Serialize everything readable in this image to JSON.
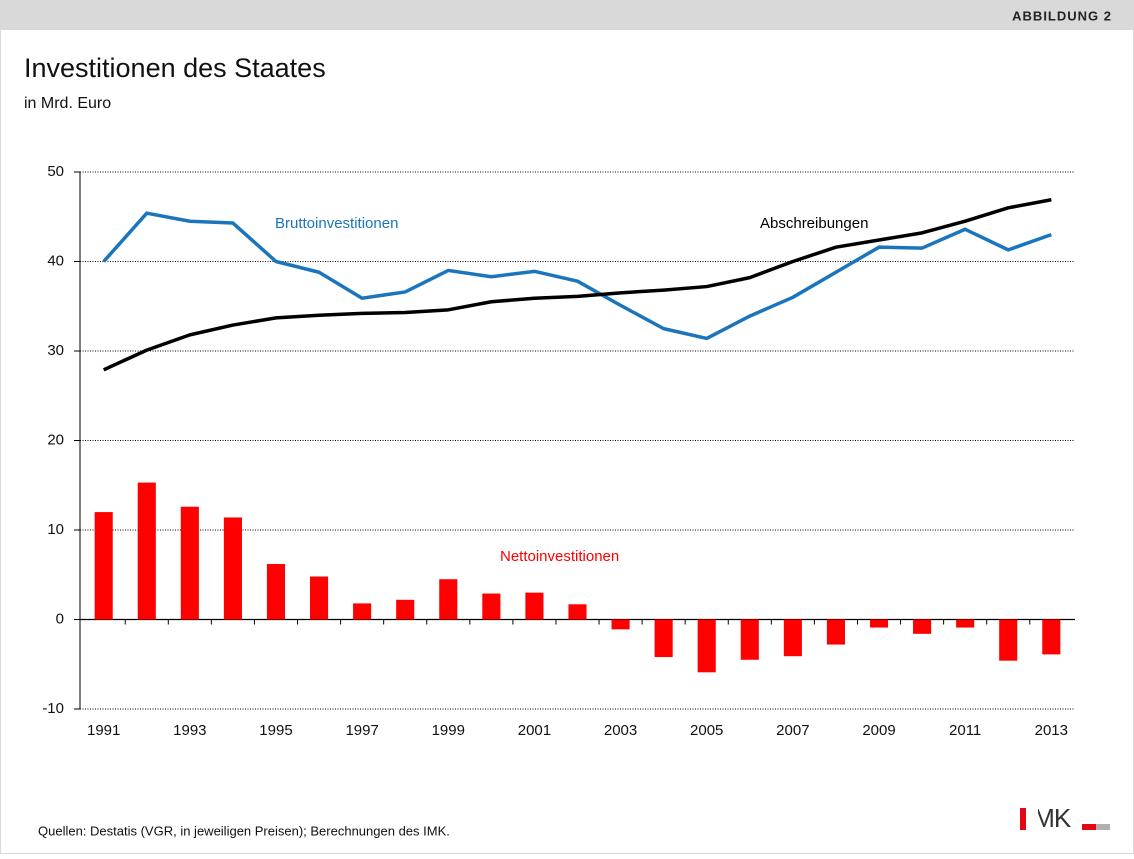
{
  "header": {
    "label": "ABBILDUNG 2"
  },
  "chart_data": {
    "type": "bar",
    "title": "Investitionen des Staates",
    "subtitle": "in Mrd. Euro",
    "x": [
      1991,
      1992,
      1993,
      1994,
      1995,
      1996,
      1997,
      1998,
      1999,
      2000,
      2001,
      2002,
      2003,
      2004,
      2005,
      2006,
      2007,
      2008,
      2009,
      2010,
      2011,
      2012,
      2013
    ],
    "xlim": [
      1990.45,
      2013.55
    ],
    "xticks": [
      1991,
      1993,
      1995,
      1997,
      1999,
      2001,
      2003,
      2005,
      2007,
      2009,
      2011,
      2013
    ],
    "ylim": [
      -10,
      50
    ],
    "yticks": [
      -10,
      0,
      10,
      20,
      30,
      40,
      50
    ],
    "grid": true,
    "series": [
      {
        "name": "Nettoinvestitionen",
        "type": "bar",
        "color": "#ff0000",
        "values": [
          12.0,
          15.3,
          12.6,
          11.4,
          6.2,
          4.8,
          1.8,
          2.2,
          4.5,
          2.9,
          3.0,
          1.7,
          -1.1,
          -4.2,
          -5.9,
          -4.5,
          -4.1,
          -2.8,
          -0.9,
          -1.6,
          -0.9,
          -4.6,
          -3.9
        ]
      },
      {
        "name": "Bruttoinvestitionen",
        "type": "line",
        "color": "#1a75bc",
        "values": [
          40.0,
          45.4,
          44.5,
          44.3,
          40.0,
          38.8,
          35.9,
          36.6,
          39.0,
          38.3,
          38.9,
          37.8,
          35.1,
          32.5,
          31.4,
          33.9,
          36.0,
          38.8,
          41.6,
          41.5,
          43.6,
          41.3,
          43.0
        ]
      },
      {
        "name": "Abschreibungen",
        "type": "line",
        "color": "#000000",
        "values": [
          27.9,
          30.1,
          31.8,
          32.9,
          33.7,
          34.0,
          34.2,
          34.3,
          34.6,
          35.5,
          35.9,
          36.1,
          36.5,
          36.8,
          37.2,
          38.2,
          40.0,
          41.6,
          42.4,
          43.2,
          44.5,
          46.0,
          46.9
        ]
      }
    ]
  },
  "footer": {
    "source": "Quellen: Destatis (VGR, in jeweiligen Preisen); Berechnungen des IMK.",
    "logo": "IMK"
  }
}
